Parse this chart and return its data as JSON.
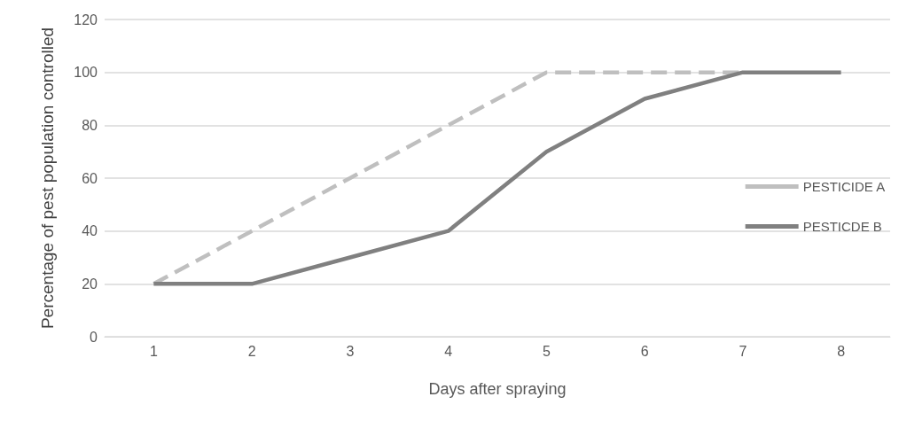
{
  "chart_data": {
    "type": "line",
    "xlabel": "Days after spraying",
    "ylabel": "Percentage of pest population controlled",
    "categories": [
      "1",
      "2",
      "3",
      "4",
      "5",
      "6",
      "7",
      "8"
    ],
    "series": [
      {
        "name": "PESTICIDE A",
        "color": "#bfbfbf",
        "line_style": "dashed",
        "values": [
          20,
          40,
          60,
          80,
          100,
          100,
          100,
          null
        ]
      },
      {
        "name": "PESTICDE B",
        "color": "#808080",
        "line_style": "solid",
        "values": [
          20,
          20,
          30,
          40,
          70,
          90,
          100,
          100
        ]
      }
    ],
    "ylim": [
      0,
      120
    ],
    "yticks": [
      0,
      20,
      40,
      60,
      80,
      100,
      120
    ],
    "grid": "y",
    "legend": "right",
    "marker": "none"
  }
}
